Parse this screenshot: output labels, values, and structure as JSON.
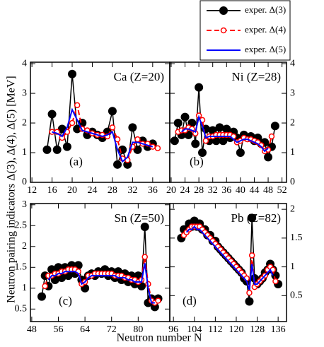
{
  "figure": {
    "xlabel": "Neutron number N",
    "ylabel": "Neutron pairing indicators Δ(3), Δ(4), Δ(5) [MeV]"
  },
  "chart_data": [
    {
      "type": "line",
      "title": "Ca (Z=20)",
      "annotation": "(a)",
      "y_side": "left",
      "x": [
        15,
        16,
        17,
        18,
        19,
        20,
        21,
        22,
        23,
        24,
        25,
        26,
        27,
        28,
        29,
        30,
        31,
        32,
        33,
        34,
        35,
        36,
        37
      ],
      "xlim": [
        11.7,
        39.4
      ],
      "xticks": [
        12,
        16,
        20,
        24,
        28,
        32,
        36
      ],
      "ylim": [
        0,
        4.05
      ],
      "yticks": [
        0,
        1,
        2,
        3,
        4
      ],
      "series": [
        {
          "name": "exper. Δ(3)",
          "color": "#000000",
          "marker": "filled",
          "linestyle": "solid",
          "values": [
            1.1,
            2.3,
            1.1,
            1.8,
            1.2,
            3.65,
            1.8,
            2.0,
            1.6,
            1.7,
            1.6,
            1.5,
            1.7,
            2.4,
            0.6,
            1.1,
            0.6,
            1.85,
            1.1,
            1.4,
            1.2,
            1.3,
            null
          ]
        },
        {
          "name": "exper. Δ(4)",
          "color": "#ff0000",
          "marker": "open",
          "linestyle": "dashed",
          "values": [
            null,
            1.7,
            1.7,
            1.5,
            1.7,
            2.0,
            2.6,
            1.8,
            1.75,
            1.65,
            1.6,
            1.6,
            1.55,
            1.85,
            1.45,
            0.8,
            0.75,
            1.2,
            1.45,
            1.3,
            1.3,
            1.2,
            1.15
          ]
        },
        {
          "name": "exper. Δ(5)",
          "color": "#0000ff",
          "marker": "none",
          "linestyle": "solid",
          "values": [
            null,
            1.7,
            1.65,
            1.55,
            1.85,
            2.45,
            2.1,
            1.75,
            1.7,
            1.65,
            1.6,
            1.55,
            1.6,
            1.7,
            1.1,
            0.7,
            0.85,
            1.35,
            1.35,
            1.3,
            1.25,
            1.2,
            null
          ]
        }
      ]
    },
    {
      "type": "line",
      "title": "Ni (Z=28)",
      "annotation": "(b)",
      "y_side": "right",
      "x": [
        21,
        22,
        23,
        24,
        25,
        26,
        27,
        28,
        29,
        30,
        31,
        32,
        33,
        34,
        35,
        36,
        37,
        38,
        39,
        40,
        41,
        42,
        43,
        44,
        45,
        46,
        47,
        48,
        49,
        50
      ],
      "xlim": [
        19.6,
        53.3
      ],
      "xticks": [
        20,
        24,
        28,
        32,
        36,
        40,
        44,
        48,
        52
      ],
      "ylim": [
        0,
        4.05
      ],
      "yticks": [
        0,
        1,
        2,
        3,
        4
      ],
      "series": [
        {
          "color": "#000000",
          "marker": "filled",
          "linestyle": "solid",
          "values": [
            1.4,
            2.0,
            1.6,
            2.2,
            1.6,
            2.0,
            1.3,
            3.2,
            1.0,
            1.8,
            1.4,
            1.75,
            1.4,
            1.85,
            1.4,
            1.8,
            1.5,
            1.7,
            1.5,
            1.0,
            1.6,
            1.5,
            1.55,
            1.4,
            1.5,
            1.3,
            1.35,
            0.85,
            1.2,
            1.9
          ]
        },
        {
          "color": "#ff0000",
          "marker": "open",
          "linestyle": "dashed",
          "values": [
            null,
            1.7,
            1.75,
            1.75,
            1.85,
            1.8,
            1.65,
            2.25,
            2.1,
            1.4,
            1.55,
            1.55,
            1.6,
            1.6,
            1.6,
            1.6,
            1.6,
            1.55,
            1.35,
            1.4,
            1.5,
            1.45,
            1.45,
            1.4,
            1.35,
            1.25,
            1.05,
            1.1,
            1.55,
            null
          ]
        },
        {
          "color": "#0000ff",
          "marker": "none",
          "linestyle": "solid",
          "values": [
            null,
            null,
            1.7,
            1.8,
            1.8,
            1.75,
            1.7,
            2.2,
            1.9,
            1.5,
            1.55,
            1.55,
            1.55,
            1.55,
            1.55,
            1.55,
            1.55,
            1.45,
            1.35,
            1.4,
            1.45,
            1.45,
            1.4,
            1.35,
            1.3,
            1.2,
            1.05,
            1.15,
            null,
            null
          ]
        }
      ]
    },
    {
      "type": "line",
      "title": "Sn (Z=50)",
      "annotation": "(c)",
      "y_side": "left",
      "x": [
        51,
        52,
        53,
        54,
        55,
        56,
        57,
        58,
        59,
        60,
        61,
        62,
        63,
        64,
        65,
        66,
        67,
        68,
        69,
        70,
        71,
        72,
        73,
        74,
        75,
        76,
        77,
        78,
        79,
        80,
        81,
        82,
        83,
        84,
        85,
        86
      ],
      "xlim": [
        47.6,
        89.5
      ],
      "xticks": [
        48,
        56,
        64,
        72,
        80
      ],
      "ylim": [
        0.2,
        3.03
      ],
      "yticks": [
        0.5,
        1,
        1.5,
        2,
        2.5,
        3
      ],
      "series": [
        {
          "color": "#000000",
          "marker": "filled",
          "linestyle": "solid",
          "values": [
            0.8,
            1.3,
            1.05,
            1.45,
            1.2,
            1.5,
            1.25,
            1.5,
            1.3,
            1.55,
            1.35,
            1.55,
            1.2,
            1.0,
            1.3,
            1.35,
            1.3,
            1.4,
            1.35,
            1.45,
            1.3,
            1.4,
            1.25,
            1.4,
            1.2,
            1.35,
            1.15,
            1.3,
            1.1,
            1.3,
            1.05,
            2.47,
            0.65,
            0.75,
            0.55,
            0.75
          ]
        },
        {
          "color": "#ff0000",
          "marker": "open",
          "linestyle": "dashed",
          "values": [
            null,
            1.05,
            1.3,
            1.3,
            1.35,
            1.35,
            1.4,
            1.4,
            1.45,
            1.45,
            1.45,
            1.4,
            1.1,
            1.15,
            1.3,
            1.3,
            1.35,
            1.35,
            1.35,
            1.35,
            1.35,
            1.35,
            1.3,
            1.3,
            1.3,
            1.25,
            1.25,
            1.2,
            1.2,
            1.15,
            1.2,
            1.75,
            1.1,
            0.7,
            0.65,
            0.7
          ]
        },
        {
          "color": "#0000ff",
          "marker": "none",
          "linestyle": "solid",
          "values": [
            null,
            null,
            1.2,
            1.3,
            1.3,
            1.35,
            1.35,
            1.4,
            1.4,
            1.4,
            1.4,
            1.35,
            1.1,
            1.15,
            1.25,
            1.3,
            1.3,
            1.3,
            1.3,
            1.3,
            1.3,
            1.3,
            1.3,
            1.25,
            1.25,
            1.25,
            1.2,
            1.2,
            1.15,
            1.15,
            1.15,
            1.6,
            1.0,
            0.65,
            0.65,
            null
          ]
        }
      ]
    },
    {
      "type": "line",
      "title": "Pb (Z=82)",
      "annotation": "(d)",
      "y_side": "right",
      "x": [
        99,
        100,
        101,
        102,
        103,
        104,
        105,
        106,
        107,
        108,
        109,
        110,
        111,
        112,
        113,
        114,
        115,
        116,
        117,
        118,
        119,
        120,
        121,
        122,
        123,
        124,
        125,
        126,
        127,
        128,
        129,
        130,
        131,
        132,
        133,
        134,
        135,
        136
      ],
      "xlim": [
        94.6,
        139.2
      ],
      "xticks": [
        96,
        104,
        112,
        120,
        128,
        136
      ],
      "ylim": [
        0.05,
        2.1
      ],
      "yticks": [
        0.5,
        1,
        1.5,
        2
      ],
      "series": [
        {
          "color": "#000000",
          "marker": "filled",
          "linestyle": "solid",
          "values": [
            1.5,
            1.65,
            1.65,
            1.75,
            1.7,
            1.8,
            1.7,
            1.75,
            1.65,
            1.65,
            1.55,
            1.55,
            1.45,
            1.45,
            1.35,
            1.3,
            1.25,
            1.2,
            1.15,
            1.1,
            1.05,
            1.0,
            0.95,
            0.9,
            0.8,
            0.75,
            0.4,
            1.85,
            0.8,
            0.7,
            0.75,
            0.8,
            0.9,
            0.95,
            1.05,
            0.95,
            0.85,
            0.7
          ]
        },
        {
          "color": "#ff0000",
          "marker": "open",
          "linestyle": "dashed",
          "values": [
            null,
            1.55,
            1.6,
            1.65,
            1.7,
            1.7,
            1.7,
            1.7,
            1.65,
            1.6,
            1.55,
            1.5,
            1.45,
            1.4,
            1.35,
            1.3,
            1.25,
            1.2,
            1.15,
            1.1,
            1.05,
            1.0,
            0.95,
            0.9,
            0.85,
            0.8,
            0.55,
            1.2,
            0.65,
            0.7,
            0.75,
            0.8,
            0.85,
            0.95,
            1.0,
            0.95,
            0.75,
            null
          ]
        },
        {
          "color": "#0000ff",
          "marker": "none",
          "linestyle": "solid",
          "values": [
            null,
            null,
            1.6,
            1.65,
            1.65,
            1.7,
            1.65,
            1.65,
            1.6,
            1.55,
            1.5,
            1.45,
            1.4,
            1.35,
            1.3,
            1.25,
            1.2,
            1.15,
            1.1,
            1.05,
            1.0,
            0.95,
            0.9,
            0.85,
            0.8,
            0.75,
            0.6,
            1.05,
            0.7,
            0.7,
            0.75,
            0.8,
            0.85,
            0.9,
            0.95,
            0.85,
            null,
            null
          ]
        }
      ]
    }
  ]
}
